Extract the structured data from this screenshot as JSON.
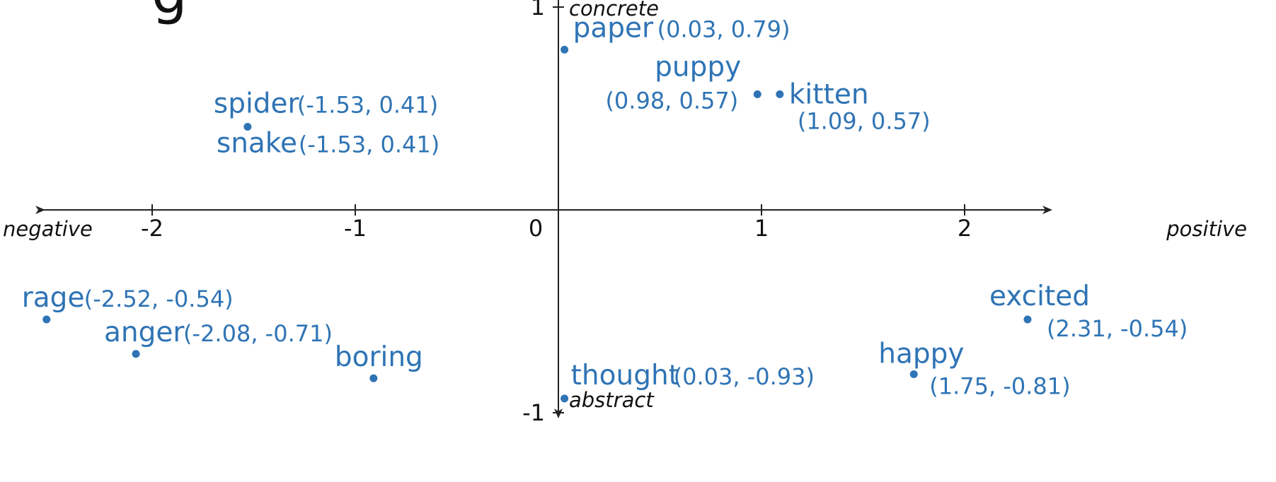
{
  "chart_data": {
    "type": "scatter",
    "title": "",
    "x_axis": {
      "negative_label": "negative",
      "positive_label": "positive",
      "range": [
        -2.9,
        2.8
      ],
      "ticks": [
        "-2",
        "-1",
        "0",
        "1",
        "2"
      ]
    },
    "y_axis": {
      "positive_label": "concrete",
      "negative_label": "abstract",
      "range": [
        -1.1,
        1.1
      ],
      "ticks": [
        "1",
        "-1"
      ]
    },
    "points": [
      {
        "word": "paper",
        "x": 0.03,
        "y": 0.79,
        "coord_label": "(0.03, 0.79)"
      },
      {
        "word": "spider",
        "x": -1.53,
        "y": 0.41,
        "coord_label": "(-1.53, 0.41)"
      },
      {
        "word": "snake",
        "x": -1.53,
        "y": 0.41,
        "coord_label": "(-1.53, 0.41)"
      },
      {
        "word": "puppy",
        "x": 0.98,
        "y": 0.57,
        "coord_label": "(0.98, 0.57)"
      },
      {
        "word": "kitten",
        "x": 1.09,
        "y": 0.57,
        "coord_label": "(1.09, 0.57)"
      },
      {
        "word": "rage",
        "x": -2.52,
        "y": -0.54,
        "coord_label": "(-2.52, -0.54)"
      },
      {
        "word": "anger",
        "x": -2.08,
        "y": -0.71,
        "coord_label": "(-2.08, -0.71)"
      },
      {
        "word": "boring",
        "x": -0.91,
        "y": -0.83,
        "coord_label": ""
      },
      {
        "word": "thought",
        "x": 0.03,
        "y": -0.93,
        "coord_label": "(0.03, -0.93)"
      },
      {
        "word": "happy",
        "x": 1.75,
        "y": -0.81,
        "coord_label": "(1.75, -0.81)"
      },
      {
        "word": "excited",
        "x": 2.31,
        "y": -0.54,
        "coord_label": "(2.31, -0.54)"
      }
    ],
    "point_color": "#2f74b5",
    "axis_color": "#222222",
    "grid": false
  },
  "corner_fragment": "g"
}
